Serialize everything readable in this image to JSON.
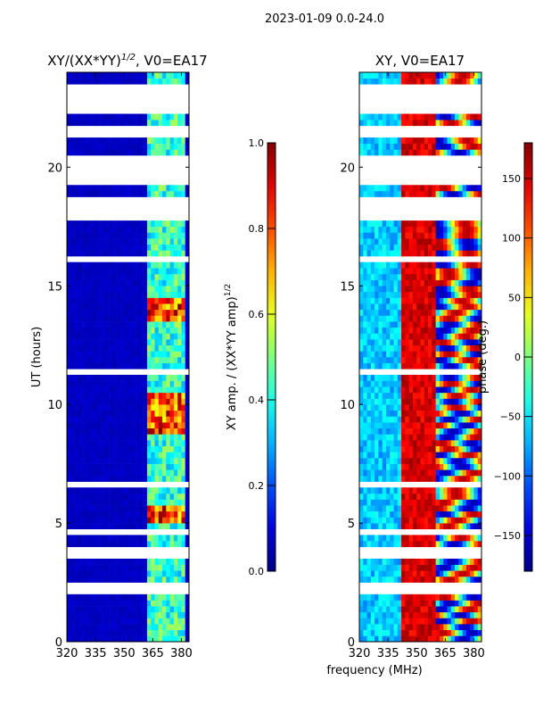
{
  "suptitle": "2023-01-09 0.0-24.0",
  "shared_xlabel": "frequency (MHz)",
  "colors": {
    "background": "#ffffff",
    "axis": "#000000"
  },
  "chart_data": [
    {
      "type": "heatmap",
      "title": "XY/(XX*YY)",
      "title_superscript": "1/2",
      "title_suffix": ", V0=EA17",
      "xlabel": "",
      "ylabel": "UT (hours)",
      "xlim": [
        320,
        384
      ],
      "ylim": [
        0,
        24
      ],
      "xticks": [
        "320",
        "335",
        "350",
        "365",
        "380"
      ],
      "xtick_values": [
        320,
        335,
        350,
        365,
        380
      ],
      "yticks": [
        "0",
        "5",
        "10",
        "15",
        "20"
      ],
      "ytick_values": [
        0,
        5,
        10,
        15,
        20
      ],
      "colormap": "jet",
      "colorbar": {
        "label": "XY amp. / (XX*YY amp)",
        "label_superscript": "1/2",
        "range": [
          0,
          1
        ],
        "ticks": [
          "0.0",
          "0.2",
          "0.4",
          "0.6",
          "0.8",
          "1.0"
        ],
        "tick_values": [
          0,
          0.2,
          0.4,
          0.6,
          0.8,
          1.0
        ]
      },
      "description_bands_MHz": [
        [
          362,
          366
        ],
        [
          367,
          372
        ],
        [
          373,
          377
        ],
        [
          378,
          382
        ]
      ],
      "gaps_UT_hours": [
        [
          23.1,
          23.6
        ],
        [
          22.3,
          22.9
        ],
        [
          21.2,
          21.7
        ],
        [
          19.3,
          20.6
        ],
        [
          17.7,
          18.8
        ],
        [
          16.0,
          16.3
        ],
        [
          11.2,
          11.4
        ],
        [
          6.5,
          6.8
        ],
        [
          4.4,
          4.7
        ],
        [
          3.6,
          4.0
        ],
        [
          2.1,
          2.4
        ]
      ]
    },
    {
      "type": "heatmap",
      "title": "XY, V0=EA17",
      "xlabel": "",
      "ylabel": "",
      "xlim": [
        320,
        384
      ],
      "ylim": [
        0,
        24
      ],
      "xticks": [
        "320",
        "335",
        "350",
        "365",
        "380"
      ],
      "xtick_values": [
        320,
        335,
        350,
        365,
        380
      ],
      "yticks": [
        "0",
        "5",
        "10",
        "15",
        "20"
      ],
      "ytick_values": [
        0,
        5,
        10,
        15,
        20
      ],
      "colormap": "jet",
      "colorbar": {
        "label": "phase (deg.)",
        "range": [
          -180,
          180
        ],
        "ticks": [
          "150",
          "100",
          "50",
          "0",
          "−50",
          "−100",
          "−150"
        ],
        "tick_values": [
          150,
          100,
          50,
          0,
          -50,
          -100,
          -150
        ]
      },
      "gaps_UT_hours": [
        [
          23.1,
          23.6
        ],
        [
          22.3,
          22.9
        ],
        [
          21.2,
          21.7
        ],
        [
          19.3,
          20.6
        ],
        [
          17.7,
          18.8
        ],
        [
          16.0,
          16.3
        ],
        [
          11.2,
          11.4
        ],
        [
          6.5,
          6.8
        ],
        [
          4.4,
          4.7
        ],
        [
          3.6,
          4.0
        ],
        [
          2.1,
          2.4
        ]
      ]
    }
  ]
}
